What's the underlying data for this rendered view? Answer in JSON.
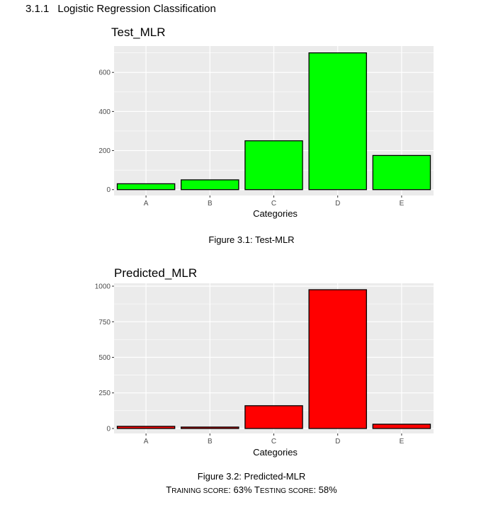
{
  "section": {
    "number": "3.1.1",
    "title": "Logistic Regression Classification"
  },
  "chart_data": [
    {
      "type": "bar",
      "title": "Test_MLR",
      "xlabel": "Categories",
      "ylabel": "",
      "categories": [
        "A",
        "B",
        "C",
        "D",
        "E"
      ],
      "values": [
        30,
        50,
        250,
        700,
        175
      ],
      "yticks": [
        0,
        200,
        400,
        600
      ],
      "ylim": [
        -30,
        735
      ],
      "bar_color": "#00ff00",
      "panel_color": "#ebebeb",
      "grid": true,
      "caption": "Figure 3.1: Test-MLR"
    },
    {
      "type": "bar",
      "title": "Predicted_MLR",
      "xlabel": "Categories",
      "ylabel": "",
      "categories": [
        "A",
        "B",
        "C",
        "D",
        "E"
      ],
      "values": [
        15,
        10,
        160,
        975,
        30
      ],
      "yticks": [
        0,
        250,
        500,
        750,
        1000
      ],
      "ylim": [
        -35,
        1020
      ],
      "bar_color": "#ff0000",
      "panel_color": "#ebebeb",
      "grid": true,
      "caption": "Figure 3.2: Predicted-MLR"
    }
  ],
  "scores": {
    "training_label_first": "T",
    "training_label_rest": "raining score",
    "training_value": "63%",
    "testing_label_first": "T",
    "testing_label_rest": "esting score",
    "testing_value": "58%"
  }
}
